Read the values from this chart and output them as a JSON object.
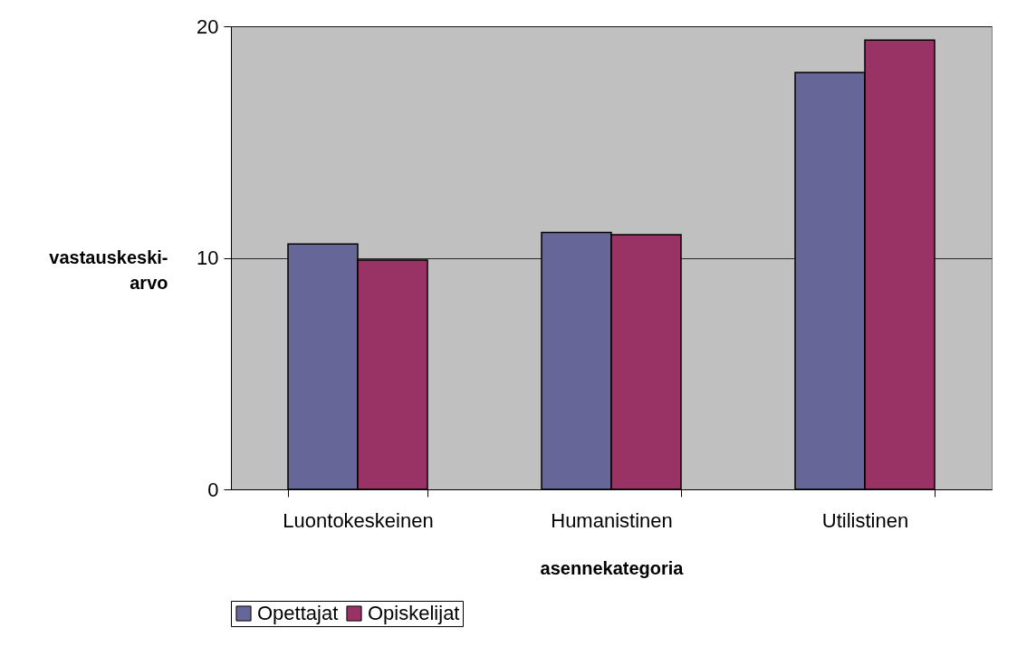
{
  "chart_data": {
    "type": "bar",
    "xlabel": "asennekategoria",
    "ylabel": "vastauskeski-arvo",
    "categories": [
      "Luontokeskeinen",
      "Humanistinen",
      "Utilistinen"
    ],
    "series": [
      {
        "name": "Opettajat",
        "color": "#666699",
        "values": [
          10.6,
          11.1,
          18.0
        ]
      },
      {
        "name": "Opiskelijat",
        "color": "#993366",
        "values": [
          9.9,
          11.0,
          19.4
        ]
      }
    ],
    "ylim": [
      0,
      20
    ],
    "yticks": [
      0,
      10,
      20
    ],
    "grid": "y",
    "legend": "bottom"
  }
}
